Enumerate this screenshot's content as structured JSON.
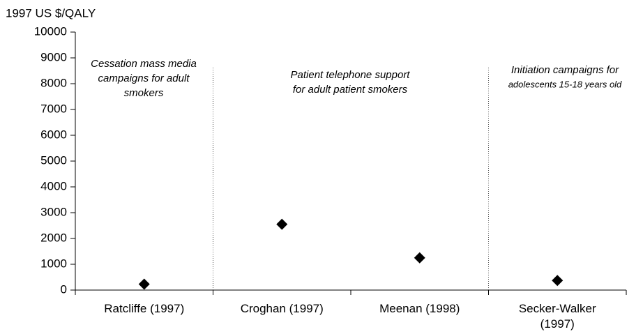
{
  "chart_data": {
    "type": "scatter",
    "y_axis_label": "1997 US $/QALY",
    "categories": [
      "Ratcliffe (1997)",
      "Croghan (1997)",
      "Meenan (1998)",
      "Secker-Walker (1997)"
    ],
    "values": [
      230,
      2550,
      1250,
      370
    ],
    "color": "#000000",
    "ylim": [
      0,
      10000
    ],
    "yticks": [
      0,
      1000,
      2000,
      3000,
      4000,
      5000,
      6000,
      7000,
      8000,
      9000,
      10000
    ],
    "annotations": [
      [
        "Cessation mass media",
        "campaigns for adult",
        "smokers"
      ],
      [
        "Patient telephone support",
        "for adult patient smokers"
      ],
      [
        "Initiation campaigns for",
        "adolescents 15-18  years old"
      ]
    ]
  }
}
